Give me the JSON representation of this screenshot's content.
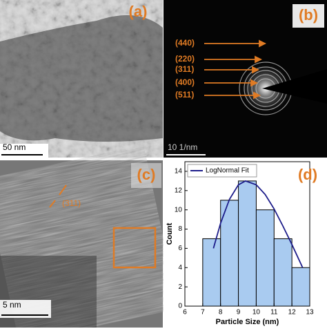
{
  "panels": {
    "a": {
      "label": "(a)",
      "scale_bar": "50 nm"
    },
    "b": {
      "label": "(b)",
      "scale_bar": "10 1/nm",
      "rings": [
        "(440)",
        "(220)",
        "(311)",
        "(400)",
        "(511)"
      ]
    },
    "c": {
      "label": "(c)",
      "scale_bar": "5 nm",
      "plane": "(311)"
    }
  },
  "chart_data": {
    "type": "histogram",
    "label": "(d)",
    "xlabel": "Particle Size (nm)",
    "ylabel": "Count",
    "bins": [
      7,
      8,
      9,
      10,
      11,
      12,
      13
    ],
    "values": [
      7,
      11,
      13,
      10,
      7,
      4
    ],
    "color": "#a9cbf0",
    "fit": {
      "name": "LogNormal Fit",
      "color": "#1c1c8a",
      "x": [
        7.6,
        8,
        8.5,
        9,
        9.4,
        10,
        10.5,
        11,
        11.5,
        12,
        12.6
      ],
      "values": [
        6,
        8.6,
        11.1,
        12.6,
        13,
        12.6,
        11.6,
        10.1,
        8.3,
        6.4,
        4
      ]
    },
    "xlim": [
      6,
      13
    ],
    "xticks": [
      6,
      7,
      8,
      9,
      10,
      11,
      12,
      13
    ],
    "ylim": [
      0,
      15
    ],
    "yticks": [
      0,
      2,
      4,
      6,
      8,
      10,
      12,
      14
    ],
    "grid": false,
    "legend": "upper left"
  }
}
